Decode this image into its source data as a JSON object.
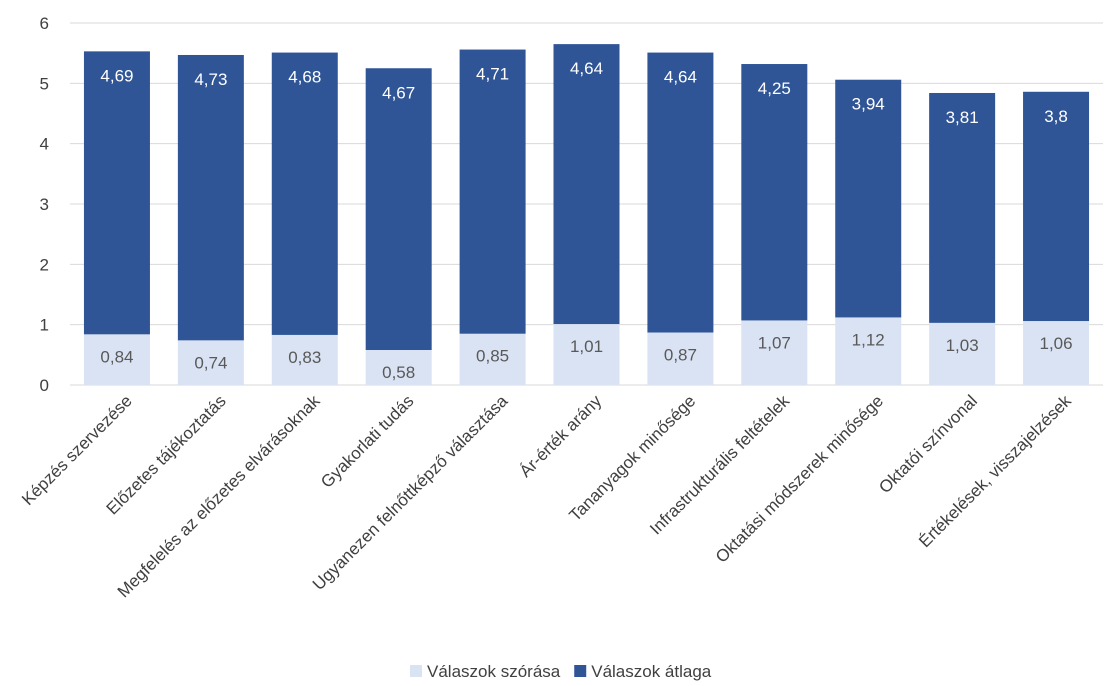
{
  "chart_data": {
    "type": "bar",
    "stacked": true,
    "categories": [
      "Képzés szervezése",
      "Előzetes tájékoztatás",
      "Megfelelés az előzetes elvárásoknak",
      "Gyakorlati tudás",
      "Ugyanezen felnőttképző választása",
      "Ár-érték arány",
      "Tananyagok minősége",
      "Infrastrukturális feltételek",
      "Oktatási módszerek minősége",
      "Oktatói színvonal",
      "Értékelések, visszajelzések"
    ],
    "series": [
      {
        "name": "Válaszok szórása",
        "color": "#dae3f3",
        "label_color": "#595959",
        "values": [
          0.84,
          0.74,
          0.83,
          0.58,
          0.85,
          1.01,
          0.87,
          1.07,
          1.12,
          1.03,
          1.06
        ],
        "labels": [
          "0,84",
          "0,74",
          "0,83",
          "0,58",
          "0,85",
          "1,01",
          "0,87",
          "1,07",
          "1,12",
          "1,03",
          "1,06"
        ]
      },
      {
        "name": "Válaszok átlaga",
        "color": "#2f5597",
        "label_color": "#ffffff",
        "values": [
          4.69,
          4.73,
          4.68,
          4.67,
          4.71,
          4.64,
          4.64,
          4.25,
          3.94,
          3.81,
          3.8
        ],
        "labels": [
          "4,69",
          "4,73",
          "4,68",
          "4,67",
          "4,71",
          "4,64",
          "4,64",
          "4,25",
          "3,94",
          "3,81",
          "3,8"
        ]
      }
    ],
    "title": "",
    "xlabel": "",
    "ylabel": "",
    "ylim": [
      0,
      6
    ],
    "yticks": [
      "0",
      "1",
      "2",
      "3",
      "4",
      "5",
      "6"
    ],
    "grid": true,
    "gridline_color": "#d9d9d9",
    "legend_position": "bottom"
  }
}
